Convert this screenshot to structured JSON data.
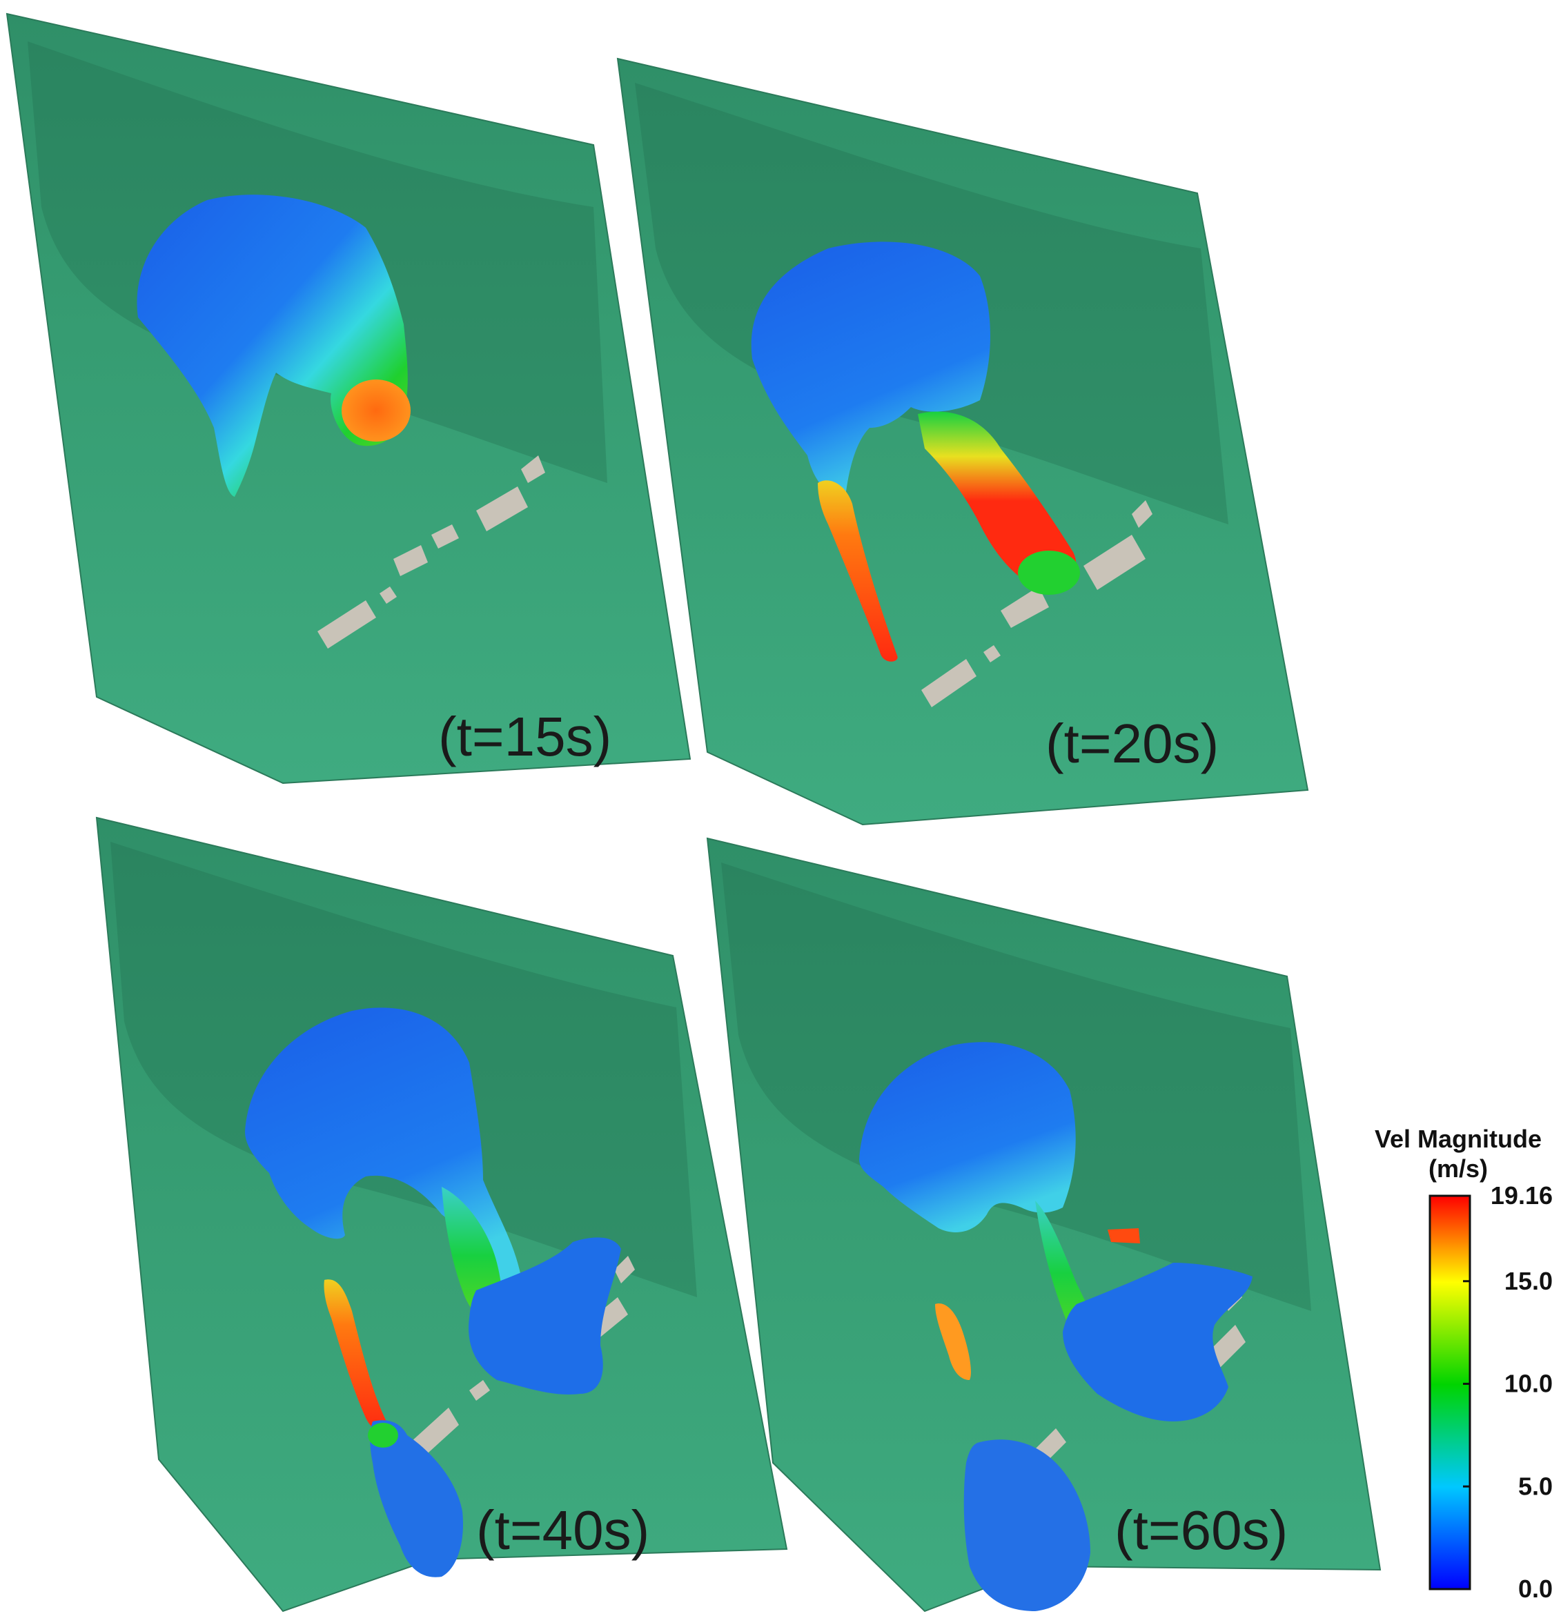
{
  "panels": [
    {
      "label": "(t=15s)"
    },
    {
      "label": "(t=20s)"
    },
    {
      "label": "(t=40s)"
    },
    {
      "label": "(t=60s)"
    }
  ],
  "colorbar": {
    "title_line1": "Vel Magnitude",
    "title_line2": "(m/s)",
    "min": 0.0,
    "max": 19.16,
    "ticks": [
      "19.16",
      "15.0",
      "10.0",
      "5.0",
      "0.0"
    ],
    "stops": [
      "#0000ff",
      "#00c8ff",
      "#00d400",
      "#ffff00",
      "#ff0000"
    ]
  },
  "colors": {
    "terrain": "#3da57c",
    "terrain_dark": "#2a7f5d",
    "buildings": "#c9c3b8",
    "slow": "#1a63e8",
    "medium": "#16c93a",
    "fast": "#ff2a10"
  }
}
